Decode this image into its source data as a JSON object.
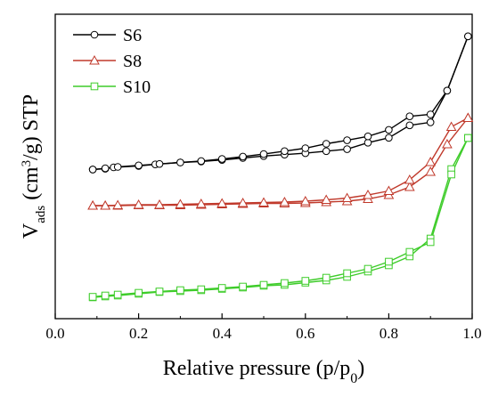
{
  "chart_data": {
    "type": "line",
    "xlabel": {
      "text": "Relative pressure (p/p",
      "sub": "0",
      "tail": ")"
    },
    "ylabel": {
      "v": "V",
      "v_sub": "ads",
      "mid": " (cm",
      "sup": "3",
      "tail": "/g) STP"
    },
    "xlim": [
      0.0,
      1.0
    ],
    "y_ticks_shown": false,
    "x_ticks": [
      "0.0",
      "0.2",
      "0.4",
      "0.6",
      "0.8",
      "1.0"
    ],
    "x_tick_values": [
      0.0,
      0.2,
      0.4,
      0.6,
      0.8,
      1.0
    ],
    "legend_position": "top-left",
    "series": [
      {
        "name": "S6",
        "color": "#000000",
        "marker": "circle",
        "adsorption": {
          "x": [
            0.09,
            0.12,
            0.14,
            0.2,
            0.24,
            0.3,
            0.35,
            0.4,
            0.45,
            0.5,
            0.55,
            0.6,
            0.65,
            0.7,
            0.75,
            0.8,
            0.85,
            0.9,
            0.94,
            0.99
          ],
          "y": [
            190.4,
            189.6,
            188.0,
            186.4,
            184.7,
            182.5,
            181.4,
            179.7,
            177.5,
            175.3,
            173.7,
            172.1,
            169.8,
            167.6,
            160.3,
            154.8,
            140.8,
            137.4,
            101.8,
            40.8
          ]
        },
        "desorption": {
          "x": [
            0.99,
            0.94,
            0.9,
            0.85,
            0.8,
            0.75,
            0.7,
            0.65,
            0.6,
            0.55,
            0.5,
            0.45,
            0.4,
            0.35,
            0.3,
            0.25,
            0.2,
            0.15,
            0.12,
            0.09
          ],
          "y": [
            40.8,
            101.8,
            128.5,
            130.7,
            145.9,
            153.2,
            157.6,
            161.5,
            166.5,
            169.8,
            173.1,
            175.9,
            178.6,
            180.9,
            182.5,
            184.2,
            185.8,
            187.5,
            189.1,
            190.4
          ]
        }
      },
      {
        "name": "S8",
        "color": "#c0392b",
        "marker": "triangle",
        "adsorption": {
          "x": [
            0.09,
            0.12,
            0.15,
            0.2,
            0.25,
            0.3,
            0.35,
            0.4,
            0.45,
            0.5,
            0.55,
            0.6,
            0.65,
            0.7,
            0.75,
            0.8,
            0.85,
            0.9,
            0.94,
            0.99
          ],
          "y": [
            231.0,
            231.0,
            231.0,
            230.5,
            230.5,
            230.5,
            230.0,
            229.5,
            229.0,
            228.5,
            228.5,
            228.0,
            227.0,
            226.0,
            223.5,
            219.0,
            210.0,
            193.0,
            162.0,
            132.5
          ]
        },
        "desorption": {
          "x": [
            0.99,
            0.95,
            0.9,
            0.85,
            0.8,
            0.75,
            0.7,
            0.65,
            0.6,
            0.55,
            0.5,
            0.45,
            0.4,
            0.35,
            0.3,
            0.25,
            0.2,
            0.15,
            0.12,
            0.09
          ],
          "y": [
            132.5,
            142.5,
            182.0,
            202.0,
            214.5,
            219.0,
            222.5,
            224.5,
            226.0,
            227.0,
            227.5,
            228.0,
            228.5,
            229.0,
            229.5,
            230.0,
            230.0,
            230.5,
            231.0,
            231.0
          ]
        }
      },
      {
        "name": "S10",
        "color": "#3ecc2a",
        "marker": "square",
        "adsorption": {
          "x": [
            0.09,
            0.12,
            0.15,
            0.2,
            0.25,
            0.3,
            0.35,
            0.4,
            0.45,
            0.5,
            0.55,
            0.6,
            0.65,
            0.7,
            0.75,
            0.8,
            0.85,
            0.9,
            0.95,
            0.99
          ],
          "y": [
            334.0,
            333.0,
            332.0,
            330.0,
            328.0,
            327.0,
            326.0,
            324.5,
            323.0,
            321.0,
            320.0,
            317.5,
            315.0,
            311.0,
            305.0,
            298.0,
            288.0,
            268.0,
            190.0,
            155.0
          ]
        },
        "desorption": {
          "x": [
            0.99,
            0.95,
            0.9,
            0.85,
            0.8,
            0.75,
            0.7,
            0.65,
            0.6,
            0.55,
            0.5,
            0.45,
            0.4,
            0.35,
            0.3,
            0.25,
            0.2,
            0.15,
            0.12,
            0.09
          ],
          "y": [
            155.0,
            196.0,
            272.0,
            283.0,
            294.0,
            302.0,
            307.0,
            312.0,
            315.5,
            318.0,
            320.0,
            322.0,
            323.5,
            325.0,
            326.0,
            327.5,
            329.0,
            331.0,
            332.0,
            333.5
          ]
        }
      }
    ]
  }
}
